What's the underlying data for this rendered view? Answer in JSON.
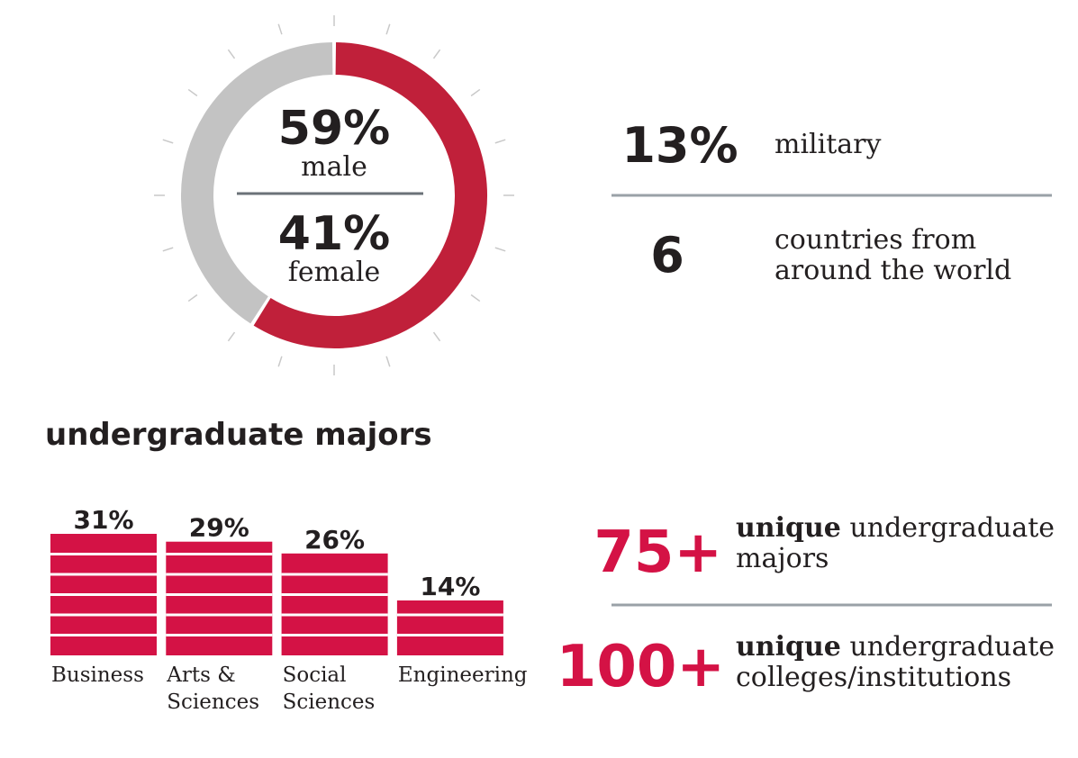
{
  "colors": {
    "accent": "#c0203a",
    "bar": "#d41245",
    "ring_gray": "#c3c3c3",
    "text": "#231f20",
    "divider": "#9aa1a7",
    "tick": "#c9c9c9"
  },
  "chart_data": [
    {
      "type": "pie",
      "style": "donut",
      "series": [
        {
          "name": "male",
          "value": 59,
          "value_label": "59%"
        },
        {
          "name": "female",
          "value": 41,
          "value_label": "41%"
        }
      ]
    },
    {
      "type": "bar",
      "title": "undergraduate majors",
      "categories": [
        "Business",
        "Arts & Sciences",
        "Social Sciences",
        "Engineering"
      ],
      "category_lines": [
        [
          "Business"
        ],
        [
          "Arts &",
          "Sciences"
        ],
        [
          "Social",
          "Sciences"
        ],
        [
          "Engineering"
        ]
      ],
      "values": [
        31,
        29,
        26,
        14
      ],
      "value_labels": [
        "31%",
        "29%",
        "26%",
        "14%"
      ],
      "unit": "%",
      "ylim": [
        0,
        31
      ]
    }
  ],
  "stats": [
    {
      "value": "13%",
      "lines": [
        "military"
      ]
    },
    {
      "value": "6",
      "lines": [
        "countries from",
        "around the world"
      ]
    }
  ],
  "unique": [
    {
      "value": "75+",
      "bold": "unique",
      "line1_rest": " undergraduate",
      "line2": "majors"
    },
    {
      "value": "100+",
      "bold": "unique",
      "line1_rest": " undergraduate",
      "line2": "colleges/institutions"
    }
  ]
}
